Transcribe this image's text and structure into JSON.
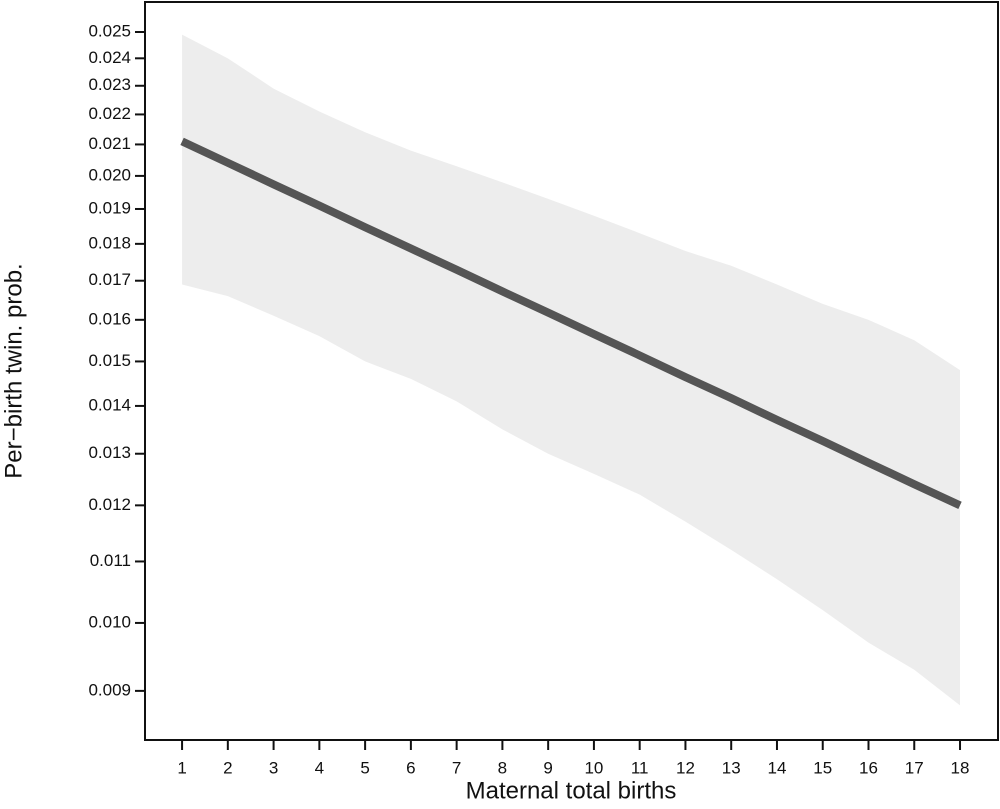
{
  "chart_data": {
    "type": "line",
    "y_log": true,
    "x_label": "Maternal total births",
    "y_label": "Per−birth twin. prob.",
    "x": [
      1,
      2,
      3,
      4,
      5,
      6,
      7,
      8,
      9,
      10,
      11,
      12,
      13,
      14,
      15,
      16,
      17,
      18
    ],
    "values": [
      0.0211,
      0.02041,
      0.01974,
      0.0191,
      0.01847,
      0.01787,
      0.01729,
      0.01672,
      0.01618,
      0.01565,
      0.01514,
      0.01464,
      0.01417,
      0.0137,
      0.01326,
      0.01282,
      0.0124,
      0.012
    ],
    "color": "#555555",
    "ci_upper": [
      0.0249,
      0.024,
      0.0229,
      0.0221,
      0.0214,
      0.0208,
      0.0203,
      0.0198,
      0.0193,
      0.0188,
      0.0183,
      0.0178,
      0.0174,
      0.0169,
      0.0164,
      0.016,
      0.0155,
      0.0148
    ],
    "ci_lower": [
      0.0169,
      0.0166,
      0.0161,
      0.0156,
      0.015,
      0.0146,
      0.0141,
      0.0135,
      0.013,
      0.0126,
      0.0122,
      0.0117,
      0.0112,
      0.0107,
      0.0102,
      0.0097,
      0.0093,
      0.0088
    ],
    "ci_color": "#ededed",
    "xlim": [
      0.19,
      18.83
    ],
    "ylim": [
      0.00834,
      0.02619
    ],
    "xticks": [
      1,
      2,
      3,
      4,
      5,
      6,
      7,
      8,
      9,
      10,
      11,
      12,
      13,
      14,
      15,
      16,
      17,
      18
    ],
    "yticks": [
      0.009,
      {
        "value": 0.01,
        "label": "0.010"
      },
      0.011,
      0.012,
      0.013,
      0.014,
      0.015,
      0.016,
      0.017,
      0.018,
      0.019,
      {
        "value": 0.02,
        "label": "0.020"
      },
      0.021,
      0.022,
      0.023,
      0.024,
      0.025
    ]
  }
}
